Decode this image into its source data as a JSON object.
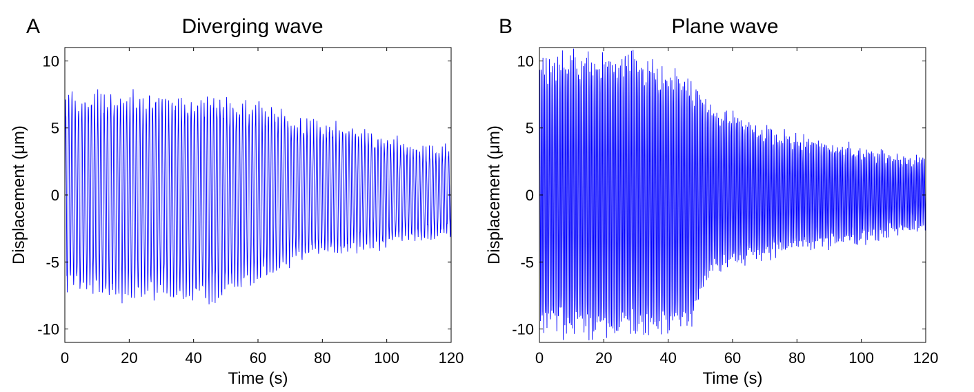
{
  "chart_data": [
    {
      "type": "line",
      "panel_label": "A",
      "title": "Diverging wave",
      "xlabel": "Time (s)",
      "ylabel": "Displacement (μm)",
      "xlim": [
        0,
        120
      ],
      "ylim": [
        -11,
        11
      ],
      "xticks": [
        0,
        20,
        40,
        60,
        80,
        100,
        120
      ],
      "yticks": [
        -10,
        -5,
        0,
        5,
        10
      ],
      "xtick_labels": [
        "0",
        "20",
        "40",
        "60",
        "80",
        "100",
        "120"
      ],
      "ytick_labels": [
        "-10",
        "-5",
        "0",
        "5",
        "10"
      ],
      "line_color": "#0000ff",
      "oscillation_period_s": 1.0,
      "envelope": {
        "t": [
          0,
          10,
          20,
          30,
          45,
          55,
          65,
          70,
          80,
          90,
          100,
          110,
          120
        ],
        "upper": [
          7.3,
          7.5,
          7.6,
          7.3,
          7.4,
          7.0,
          6.7,
          5.8,
          5.2,
          5.0,
          4.3,
          3.5,
          3.5
        ],
        "lower": [
          -7.0,
          -7.5,
          -7.8,
          -7.5,
          -8.0,
          -6.8,
          -6.0,
          -5.0,
          -4.6,
          -4.2,
          -3.8,
          -3.3,
          -3.0
        ]
      },
      "series": [
        {
          "name": "Displacement",
          "noise_level": 0.35,
          "sample_step_s": 0.07
        }
      ]
    },
    {
      "type": "line",
      "panel_label": "B",
      "title": "Plane wave",
      "xlabel": "Time (s)",
      "ylabel": "Displacement (μm)",
      "xlim": [
        0,
        120
      ],
      "ylim": [
        -11,
        11
      ],
      "xticks": [
        0,
        20,
        40,
        60,
        80,
        100,
        120
      ],
      "yticks": [
        -10,
        -5,
        0,
        5,
        10
      ],
      "xtick_labels": [
        "0",
        "20",
        "40",
        "60",
        "80",
        "100",
        "120"
      ],
      "ytick_labels": [
        "-10",
        "-5",
        "0",
        "5",
        "10"
      ],
      "line_color": "#0000ff",
      "oscillation_period_s": 0.5,
      "envelope": {
        "t": [
          0,
          10,
          20,
          30,
          40,
          48,
          52,
          60,
          70,
          80,
          90,
          100,
          110,
          120
        ],
        "upper": [
          10.0,
          10.5,
          10.2,
          10.3,
          9.3,
          8.5,
          6.6,
          6.0,
          4.8,
          4.3,
          3.9,
          3.4,
          2.9,
          2.7
        ],
        "lower": [
          -10.0,
          -10.3,
          -10.5,
          -10.5,
          -10.0,
          -9.4,
          -6.0,
          -5.3,
          -4.6,
          -4.0,
          -3.7,
          -3.3,
          -2.9,
          -2.5
        ]
      },
      "series": [
        {
          "name": "Displacement",
          "noise_level": 0.45,
          "sample_step_s": 0.05
        }
      ]
    }
  ]
}
